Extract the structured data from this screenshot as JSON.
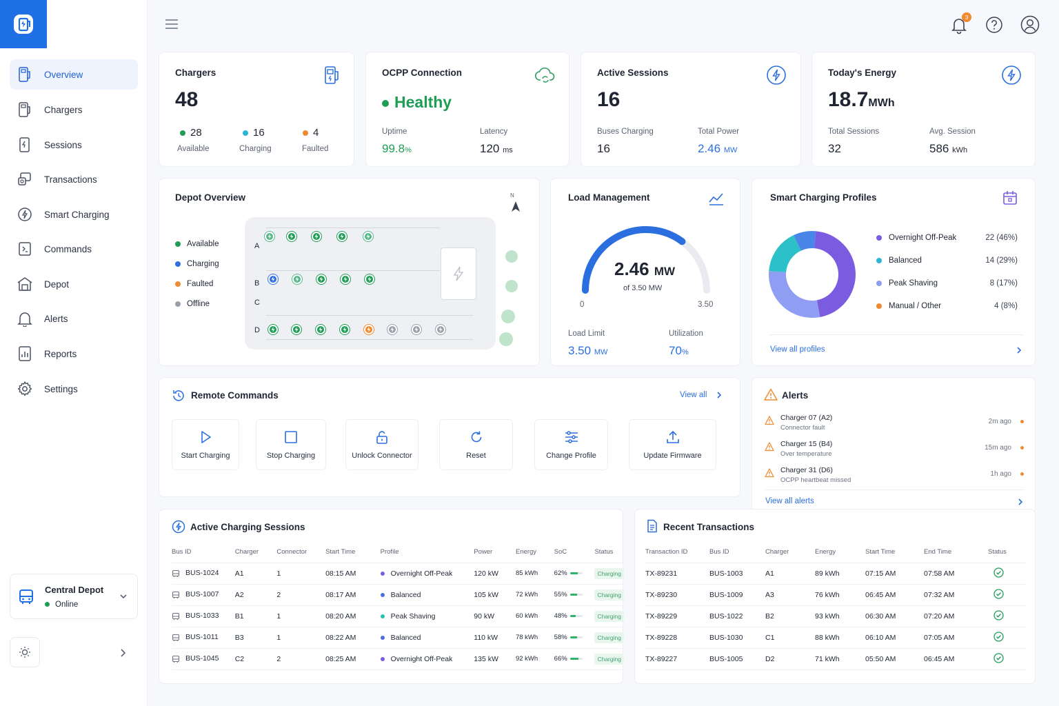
{
  "sidebar": {
    "items": [
      {
        "label": "Overview",
        "icon": "charger-icon",
        "active": true
      },
      {
        "label": "Chargers",
        "icon": "charger-icon"
      },
      {
        "label": "Sessions",
        "icon": "session-icon"
      },
      {
        "label": "Transactions",
        "icon": "transactions-icon"
      },
      {
        "label": "Smart Charging",
        "icon": "bolt-circle-icon"
      },
      {
        "label": "Commands",
        "icon": "commands-icon"
      },
      {
        "label": "Depot",
        "icon": "depot-icon"
      },
      {
        "label": "Alerts",
        "icon": "bell-icon"
      },
      {
        "label": "Reports",
        "icon": "reports-icon"
      },
      {
        "label": "Settings",
        "icon": "gear-icon"
      }
    ],
    "depot": {
      "name": "Central Depot",
      "status": "Online"
    }
  },
  "header": {
    "notification_count": "3"
  },
  "stats": {
    "chargers": {
      "title": "Chargers",
      "value": "48",
      "available": {
        "value": "28",
        "label": "Available"
      },
      "charging": {
        "value": "16",
        "label": "Charging"
      },
      "faulted": {
        "value": "4",
        "label": "Faulted"
      }
    },
    "ocpp": {
      "title": "OCPP Connection",
      "status": "Healthy",
      "uptime_label": "Uptime",
      "uptime_value": "99.8",
      "uptime_unit": "%",
      "latency_label": "Latency",
      "latency_value": "120",
      "latency_unit": "ms"
    },
    "sessions": {
      "title": "Active Sessions",
      "value": "16",
      "buses_label": "Buses Charging",
      "buses_value": "16",
      "power_label": "Total Power",
      "power_value": "2.46",
      "power_unit": "MW"
    },
    "energy": {
      "title": "Today's Energy",
      "value": "18.7",
      "unit": "MWh",
      "total_label": "Total Sessions",
      "total_value": "32",
      "avg_label": "Avg. Session",
      "avg_value": "586",
      "avg_unit": "kWh"
    }
  },
  "depot_overview": {
    "title": "Depot Overview",
    "north": "N",
    "legend": [
      {
        "label": "Available",
        "color": "#1f9d55"
      },
      {
        "label": "Charging",
        "color": "#2f6fe0"
      },
      {
        "label": "Faulted",
        "color": "#f08a30"
      },
      {
        "label": "Offline",
        "color": "#9aa0aa"
      }
    ],
    "rows": {
      "a": "A",
      "b": "B",
      "c": "C",
      "d": "D"
    }
  },
  "load": {
    "title": "Load Management",
    "value": "2.46",
    "unit": "MW",
    "of_text": "of 3.50 MW",
    "min": "0",
    "max": "3.50",
    "fraction": 0.703,
    "limit_label": "Load Limit",
    "limit_value": "3.50",
    "limit_unit": "MW",
    "util_label": "Utilization",
    "util_value": "70",
    "util_unit": "%"
  },
  "profiles": {
    "title": "Smart Charging Profiles",
    "items": [
      {
        "name": "Overnight Off-Peak",
        "value": "22 (46%)",
        "count": 22,
        "color": "#7b5ce0"
      },
      {
        "name": "Balanced",
        "value": "14 (29%)",
        "count": 14,
        "color": "#8f9ef2"
      },
      {
        "name": "Peak Shaving",
        "value": "8 (17%)",
        "count": 8,
        "color": "#2cc0c9"
      },
      {
        "name": "Manual / Other",
        "value": "4 (8%)",
        "count": 4,
        "color": "#4a86e8"
      }
    ],
    "legend_colors": [
      "#7b5ce0",
      "#2cb5d6",
      "#8f9ef2",
      "#f08a30"
    ],
    "view_all": "View all profiles"
  },
  "commands": {
    "title": "Remote Commands",
    "view_all": "View all",
    "buttons": [
      {
        "label": "Start Charging"
      },
      {
        "label": "Stop Charging"
      },
      {
        "label": "Unlock Connector"
      },
      {
        "label": "Reset"
      },
      {
        "label": "Change Profile"
      },
      {
        "label": "Update Firmware"
      }
    ]
  },
  "alerts": {
    "title": "Alerts",
    "items": [
      {
        "title": "Charger 07 (A2)",
        "desc": "Connector fault",
        "time": "2m ago"
      },
      {
        "title": "Charger 15 (B4)",
        "desc": "Over temperature",
        "time": "15m ago"
      },
      {
        "title": "Charger 31 (D6)",
        "desc": "OCPP heartbeat missed",
        "time": "1h ago"
      }
    ],
    "view_all": "View all alerts"
  },
  "active_sessions": {
    "title": "Active Charging Sessions",
    "headers": [
      "Bus ID",
      "Charger",
      "Connector",
      "Start Time",
      "Profile",
      "Power",
      "Energy",
      "SoC",
      "Status"
    ],
    "rows": [
      {
        "bus": "BUS-1024",
        "charger": "A1",
        "connector": "1",
        "start": "08:15 AM",
        "profile": "Overnight Off-Peak",
        "pcolor": "#7b5ce0",
        "power": "120 kW",
        "energy": "85 kWh",
        "soc": "62%",
        "soc_frac": 0.62,
        "status": "Charging"
      },
      {
        "bus": "BUS-1007",
        "charger": "A2",
        "connector": "2",
        "start": "08:17 AM",
        "profile": "Balanced",
        "pcolor": "#4a6fe0",
        "power": "105 kW",
        "energy": "72 kWh",
        "soc": "55%",
        "soc_frac": 0.55,
        "status": "Charging"
      },
      {
        "bus": "BUS-1033",
        "charger": "B1",
        "connector": "1",
        "start": "08:20 AM",
        "profile": "Peak Shaving",
        "pcolor": "#2cc0b0",
        "power": "90 kW",
        "energy": "60 kWh",
        "soc": "48%",
        "soc_frac": 0.48,
        "status": "Charging"
      },
      {
        "bus": "BUS-1011",
        "charger": "B3",
        "connector": "1",
        "start": "08:22 AM",
        "profile": "Balanced",
        "pcolor": "#4a6fe0",
        "power": "110 kW",
        "energy": "78 kWh",
        "soc": "58%",
        "soc_frac": 0.58,
        "status": "Charging"
      },
      {
        "bus": "BUS-1045",
        "charger": "C2",
        "connector": "2",
        "start": "08:25 AM",
        "profile": "Overnight Off-Peak",
        "pcolor": "#7b5ce0",
        "power": "135 kW",
        "energy": "92 kWh",
        "soc": "66%",
        "soc_frac": 0.66,
        "status": "Charging"
      }
    ]
  },
  "transactions": {
    "title": "Recent Transactions",
    "headers": [
      "Transaction ID",
      "Bus ID",
      "Charger",
      "Energy",
      "Start Time",
      "End Time",
      "Status"
    ],
    "rows": [
      {
        "id": "TX-89231",
        "bus": "BUS-1003",
        "charger": "A1",
        "energy": "89 kWh",
        "start": "07:15 AM",
        "end": "07:58 AM"
      },
      {
        "id": "TX-89230",
        "bus": "BUS-1009",
        "charger": "A3",
        "energy": "76 kWh",
        "start": "06:45 AM",
        "end": "07:32 AM"
      },
      {
        "id": "TX-89229",
        "bus": "BUS-1022",
        "charger": "B2",
        "energy": "93 kWh",
        "start": "06:30 AM",
        "end": "07:20 AM"
      },
      {
        "id": "TX-89228",
        "bus": "BUS-1030",
        "charger": "C1",
        "energy": "88 kWh",
        "start": "06:10 AM",
        "end": "07:05 AM"
      },
      {
        "id": "TX-89227",
        "bus": "BUS-1005",
        "charger": "D2",
        "energy": "71 kWh",
        "start": "05:50 AM",
        "end": "06:45 AM"
      }
    ]
  }
}
